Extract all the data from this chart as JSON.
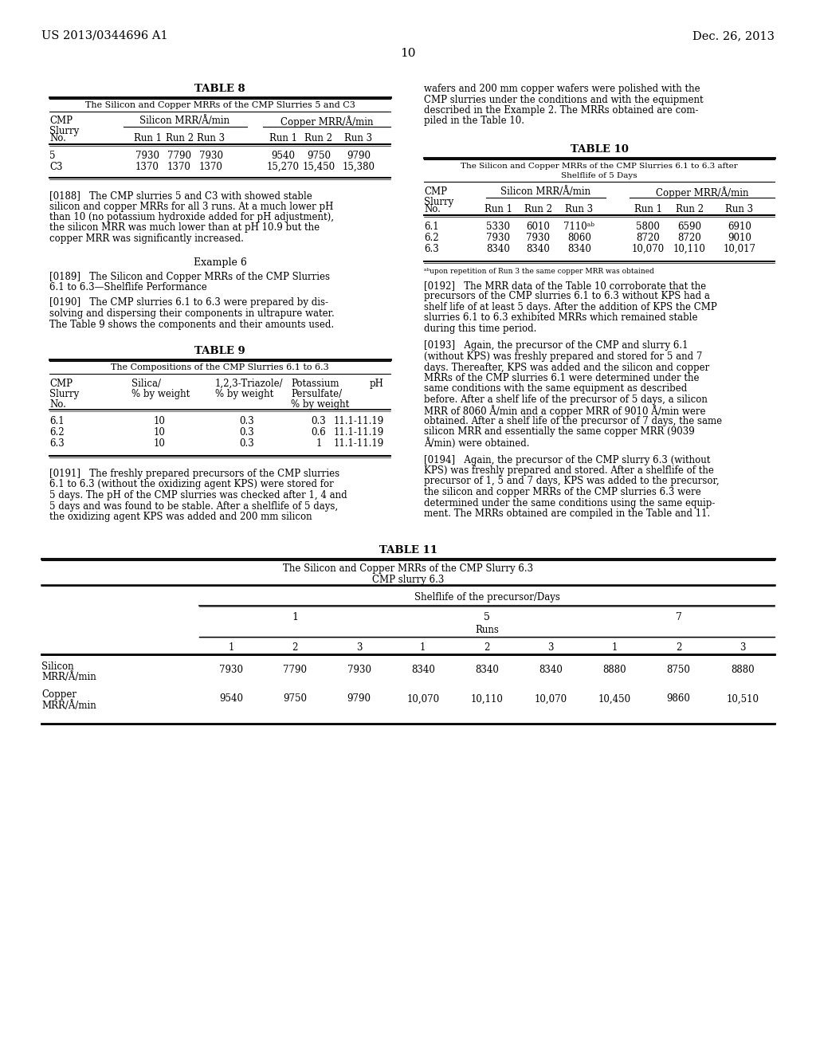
{
  "bg_color": "#ffffff",
  "header_left": "US 2013/0344696 A1",
  "header_right": "Dec. 26, 2013",
  "page_number": "10"
}
